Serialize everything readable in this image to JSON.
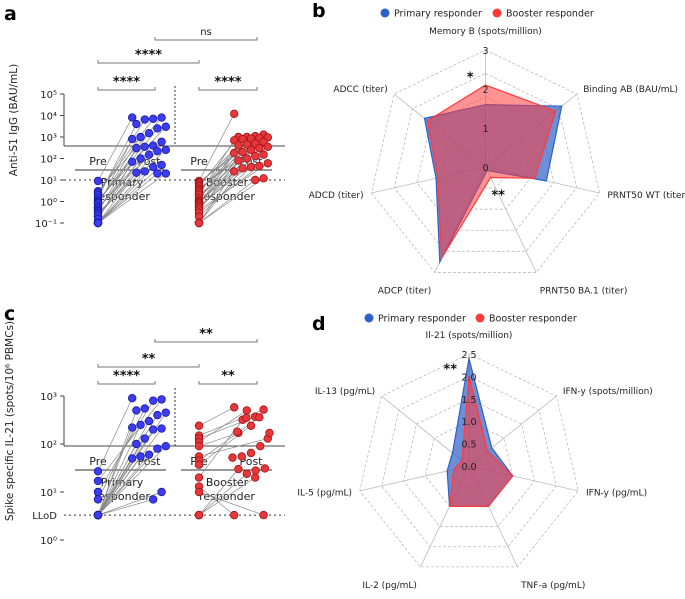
{
  "panel_letters": {
    "a": "a",
    "b": "b",
    "c": "c",
    "d": "d"
  },
  "colors": {
    "primary": "#3c3cf0",
    "primary_edge": "#1a1aa0",
    "booster": "#e8363a",
    "booster_edge": "#a01518",
    "radar_primary": "#2f5fc8",
    "radar_booster": "#ff3b3b",
    "radar_overlap": "#a8394f"
  },
  "chart_data": [
    {
      "id": "a",
      "type": "scatter",
      "ylabel": "Anti-S1 IgG (BAU/mL)",
      "yscale": "log",
      "ylim": [
        0.1,
        100000
      ],
      "yticks": [
        "10⁻¹",
        "10⁰",
        "10¹",
        "10²",
        "10³",
        "10⁴",
        "10⁵"
      ],
      "threshold": 10,
      "x_categories": [
        "Pre",
        "Post",
        "Pre",
        "Post"
      ],
      "groups": [
        "Primary",
        "responder",
        "Booster",
        "responder"
      ],
      "primary": {
        "pre": [
          9,
          3,
          2.5,
          2,
          1.5,
          1.2,
          1,
          0.9,
          0.8,
          0.6,
          0.5,
          0.5,
          0.4,
          0.35,
          0.3,
          0.25,
          0.2,
          0.2,
          0.15,
          0.1,
          0.1,
          0.1,
          0.1,
          0.1,
          0.1
        ],
        "post": [
          8000,
          8000,
          7000,
          6500,
          4000,
          3000,
          2500,
          1500,
          1000,
          800,
          600,
          400,
          350,
          300,
          250,
          220,
          150,
          100,
          70,
          50,
          40,
          25,
          22,
          20,
          20
        ]
      },
      "booster": {
        "pre": [
          9,
          8,
          7,
          6,
          5,
          4,
          3.5,
          3,
          2.5,
          2,
          2,
          1.5,
          1.5,
          1.2,
          1,
          1,
          0.9,
          0.8,
          0.7,
          0.6,
          0.5,
          0.5,
          0.4,
          0.4,
          0.3,
          0.2,
          0.1,
          0.1,
          0.1,
          0.1
        ],
        "post": [
          12000,
          1300,
          1100,
          1000,
          1000,
          950,
          900,
          850,
          800,
          700,
          600,
          500,
          450,
          400,
          350,
          300,
          250,
          200,
          180,
          150,
          130,
          100,
          80,
          60,
          45,
          40,
          35,
          25,
          12,
          10
        ]
      },
      "significance": [
        {
          "label": "****",
          "from": 0,
          "to": 1,
          "level": 0
        },
        {
          "label": "****",
          "from": 2,
          "to": 3,
          "level": 0
        },
        {
          "label": "****",
          "from": 0,
          "to": 2,
          "level": 1
        },
        {
          "label": "ns",
          "from": 1,
          "to": 3,
          "level": 2
        }
      ]
    },
    {
      "id": "c",
      "type": "scatter",
      "ylabel": "Spike specific IL-21 (spots/10⁶ PBMCs)",
      "yscale": "log",
      "ylim": [
        1,
        1000
      ],
      "yticks": [
        "10⁰",
        "10¹",
        "10²",
        "10³"
      ],
      "lod_label": "LLoD",
      "threshold": 3.3,
      "x_categories": [
        "Pre",
        "Post",
        "Pre",
        "Post"
      ],
      "groups": [
        "Primary",
        "responder",
        "Booster",
        "responder"
      ],
      "primary": {
        "pre": [
          27,
          17,
          10,
          7,
          3.3,
          3.3,
          3.3,
          3.3,
          3.3,
          3.3,
          3.3,
          3.3,
          3.3,
          3.3,
          3.3,
          3.3,
          3.3,
          3.3,
          3.3,
          3.3,
          3.3
        ],
        "post": [
          900,
          850,
          800,
          550,
          500,
          450,
          400,
          300,
          250,
          220,
          210,
          200,
          130,
          100,
          90,
          80,
          60,
          55,
          50,
          10,
          7
        ]
      },
      "booster": {
        "pre": [
          240,
          150,
          130,
          110,
          90,
          55,
          45,
          37,
          20,
          13,
          10,
          3.3,
          3.3,
          3.3
        ],
        "post": [
          580,
          520,
          370,
          500,
          170,
          130,
          360,
          240,
          320,
          3.3,
          3.3,
          20,
          24,
          30
        ]
      },
      "booster_post_unpaired": [
        350,
        180,
        170,
        90,
        65,
        55,
        52,
        31,
        28
      ],
      "significance": [
        {
          "label": "****",
          "from": 0,
          "to": 1,
          "level": 0
        },
        {
          "label": "**",
          "from": 2,
          "to": 3,
          "level": 0
        },
        {
          "label": "**",
          "from": 0,
          "to": 2,
          "level": 1
        },
        {
          "label": "**",
          "from": 1,
          "to": 3,
          "level": 2
        }
      ]
    },
    {
      "id": "b",
      "type": "radar",
      "legend": [
        "Primary responder",
        "Booster responder"
      ],
      "axes": [
        "Memory B (spots/million)",
        "Binding AB (BAU/mL)",
        "PRNT50 WT (titer)",
        "PRNT50 BA.1 (titer)",
        "ADCP (titer)",
        "ADCD (titer)",
        "ADCC (titer)"
      ],
      "rlim": [
        0,
        3
      ],
      "rticks": [
        "0",
        "1",
        "2",
        "3"
      ],
      "series": [
        {
          "name": "Primary responder",
          "values": [
            1.6,
            2.5,
            1.6,
            0.1,
            2.7,
            1.3,
            2.0
          ]
        },
        {
          "name": "Booster responder",
          "values": [
            2.1,
            2.3,
            1.3,
            0.3,
            2.6,
            1.25,
            1.9
          ]
        }
      ],
      "annotations": [
        {
          "label": "*",
          "axis": 0,
          "value": 2.35
        },
        {
          "label": "**",
          "axis": 3,
          "value": 0.75
        }
      ]
    },
    {
      "id": "d",
      "type": "radar",
      "legend": [
        "Primary responder",
        "Booster responder"
      ],
      "axes": [
        "Il-21 (spots/million)",
        "IFN-y (spots/million)",
        "IFN-y (pg/mL)",
        "TNF-a (pg/mL)",
        "IL-2 (pg/mL)",
        "IL-5 (pg/mL)",
        "IL-13 (pg/mL)"
      ],
      "rlim": [
        0,
        2.5
      ],
      "rticks": [
        "0.0",
        "0.5",
        "1.0",
        "1.5",
        "2.0",
        "2.5"
      ],
      "series": [
        {
          "name": "Primary responder",
          "values": [
            2.4,
            0.65,
            1.0,
            1.0,
            1.0,
            0.5,
            0.47
          ]
        },
        {
          "name": "Booster responder",
          "values": [
            2.0,
            0.53,
            1.0,
            1.0,
            1.0,
            0.35,
            0.2
          ]
        }
      ],
      "annotations": [
        {
          "label": "**",
          "axis": 0,
          "value": 2.2
        }
      ]
    }
  ]
}
